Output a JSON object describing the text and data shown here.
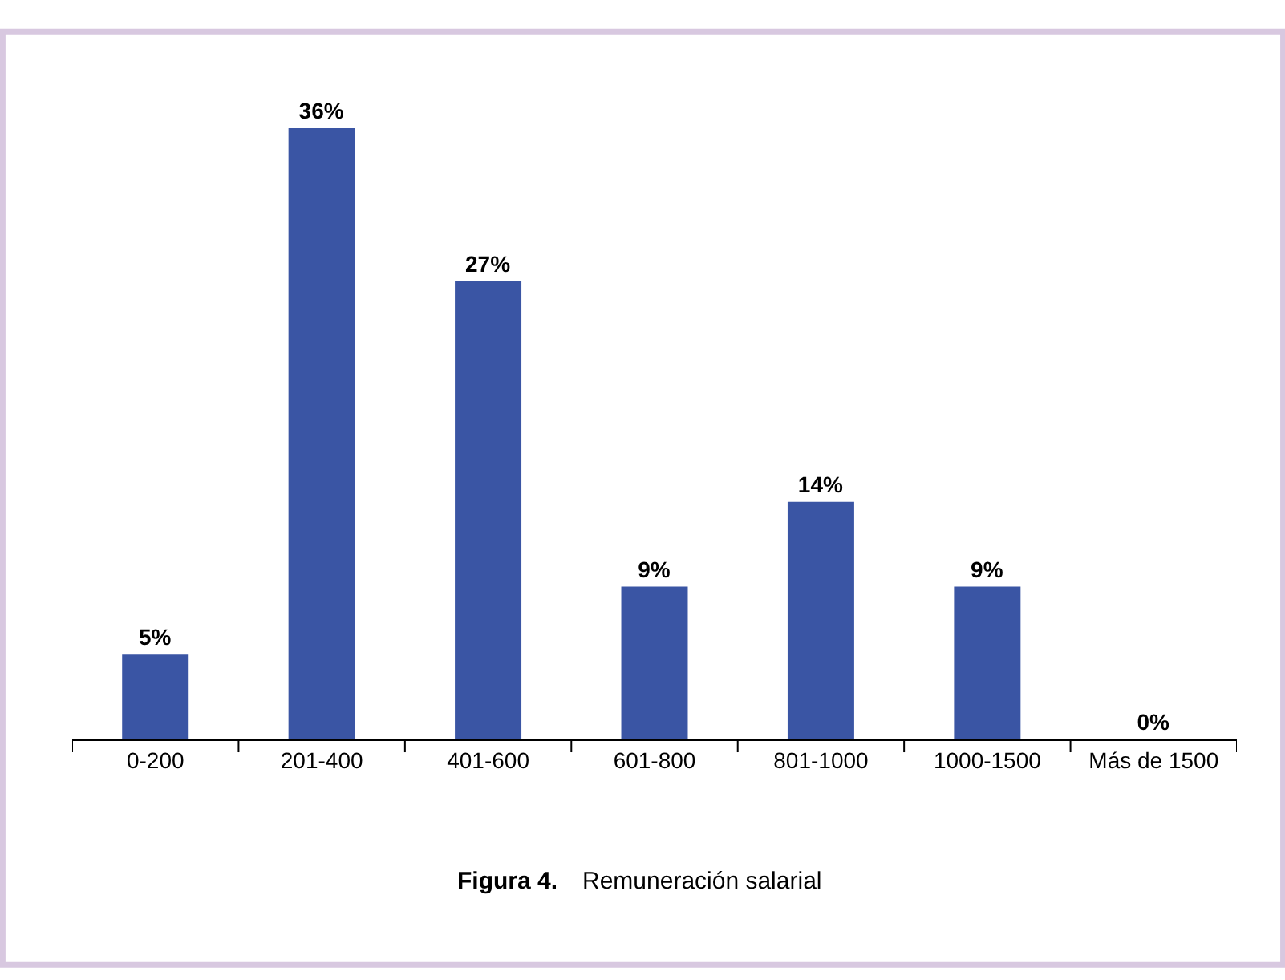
{
  "chart_data": {
    "type": "bar",
    "categories": [
      "0-200",
      "201-400",
      "401-600",
      "601-800",
      "801-1000",
      "1000-1500",
      "Más de 1500"
    ],
    "values": [
      5,
      36,
      27,
      9,
      14,
      9,
      0
    ],
    "value_labels": [
      "5%",
      "36%",
      "27%",
      "9%",
      "14%",
      "9%",
      "0%"
    ],
    "color": "#3a55a4",
    "tick_labels": "x",
    "annotations": [
      "Figura 4.",
      "Remuneración salarial"
    ]
  }
}
